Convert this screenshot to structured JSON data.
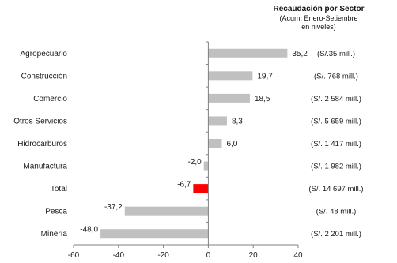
{
  "header": {
    "title": "Recaudación  por Sector",
    "subtitle_line1": "(Acum. Enero-Setiembre",
    "subtitle_line2": "en niveles)"
  },
  "chart_data": {
    "type": "bar",
    "orientation": "horizontal",
    "categories": [
      "Agropecuario",
      "Construcción",
      "Comercio",
      "Otros Servicios",
      "Hidrocarburos",
      "Manufactura",
      "Total",
      "Pesca",
      "Minería"
    ],
    "values": [
      35.2,
      19.7,
      18.5,
      8.3,
      6.0,
      -2.0,
      -6.7,
      -37.2,
      -48.0
    ],
    "value_labels": [
      "35,2",
      "19,7",
      "18,5",
      "8,3",
      "6,0",
      "-2,0",
      "-6,7",
      "-37,2",
      "-48,0"
    ],
    "annotations": [
      "(S/.35 mill.)",
      "(S/. 768 mill.)",
      "(S/. 2 584 mill.)",
      "(S/. 5 659 mill.)",
      "(S/. 1 417 mill.)",
      "(S/. 1 982 mill.)",
      "(S/. 14 697 mill.)",
      "(S/.  48 mill.)",
      "(S/. 2 201 mill.)"
    ],
    "xlim": [
      -60,
      40
    ],
    "xticks": [
      -60,
      -40,
      -20,
      0,
      20,
      40
    ],
    "xtick_labels": [
      "-60",
      "-40",
      "-20",
      "0",
      "20",
      "40"
    ],
    "colors": {
      "default": "#c0c0c0",
      "highlight": "#ff0000",
      "axis": "#808080"
    },
    "highlight_category": "Total",
    "grid": false,
    "legend": "none"
  }
}
